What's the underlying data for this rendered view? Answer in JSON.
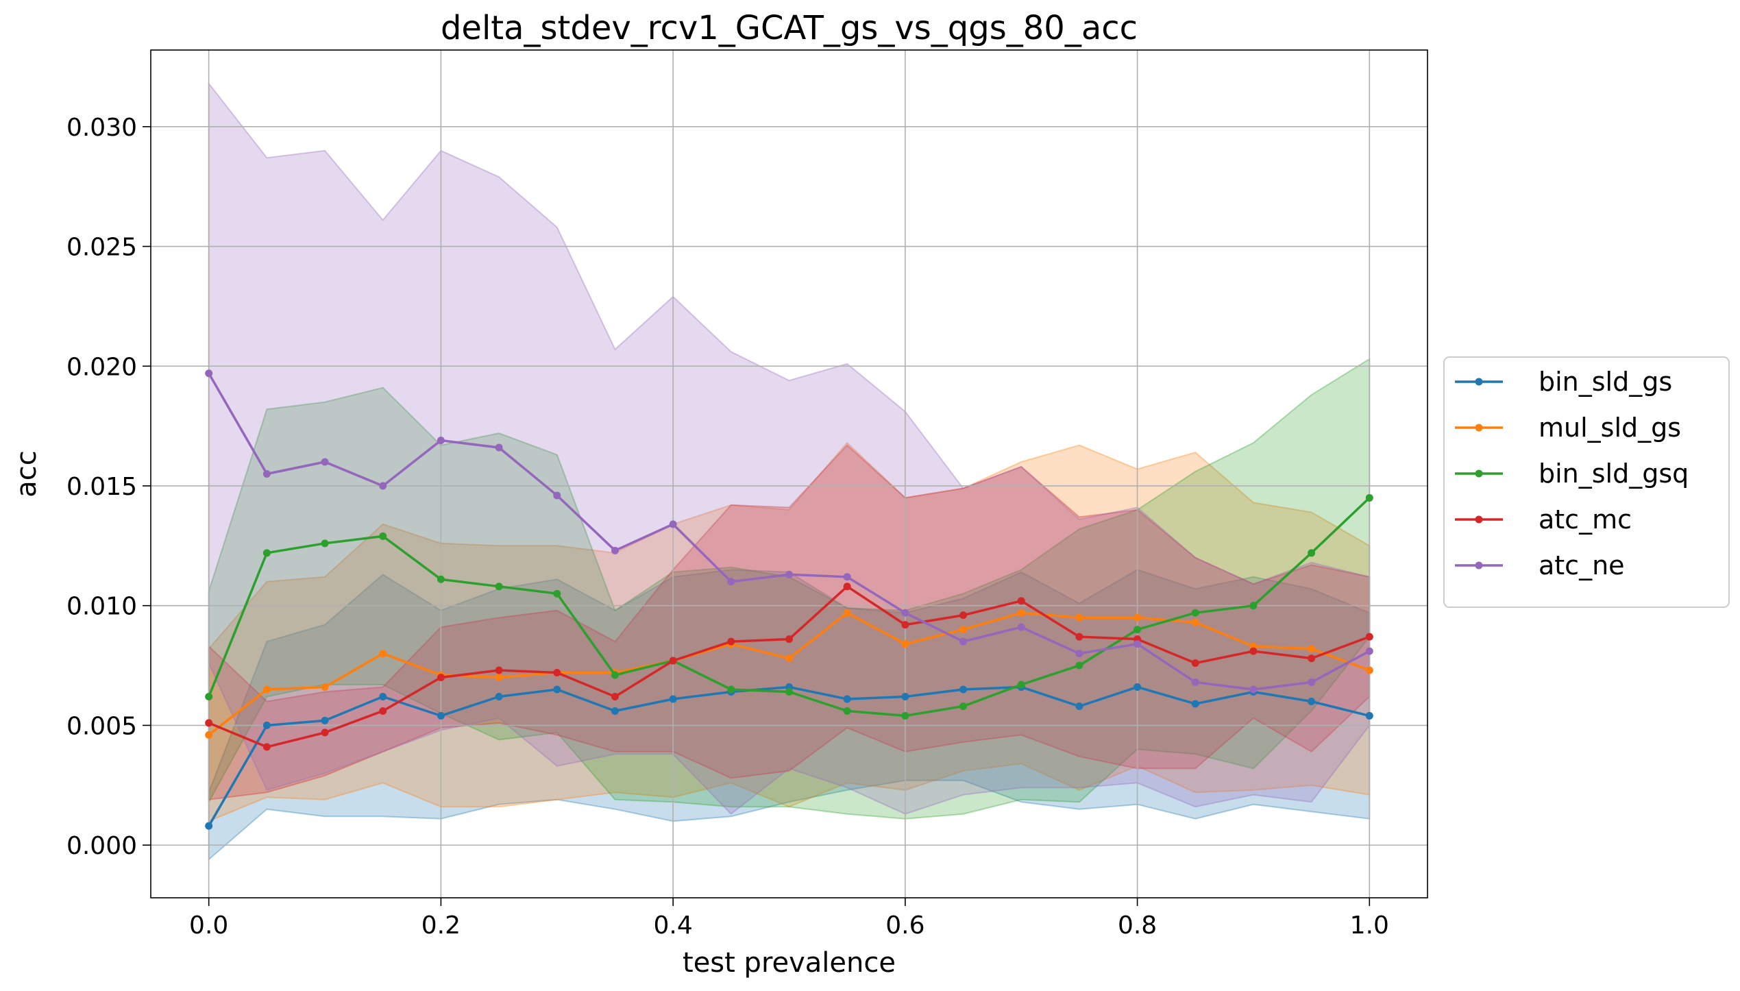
{
  "chart_data": {
    "type": "line",
    "title": "delta_stdev_rcv1_GCAT_gs_vs_qgs_80_acc",
    "xlabel": "test prevalence",
    "ylabel": "acc",
    "xlim": [
      -0.05,
      1.05
    ],
    "ylim": [
      -0.0022,
      0.0332
    ],
    "xticks": [
      0.0,
      0.2,
      0.4,
      0.6,
      0.8,
      1.0
    ],
    "xtick_labels": [
      "0.0",
      "0.2",
      "0.4",
      "0.6",
      "0.8",
      "1.0"
    ],
    "yticks": [
      0.0,
      0.005,
      0.01,
      0.015,
      0.02,
      0.025,
      0.03
    ],
    "ytick_labels": [
      "0.000",
      "0.005",
      "0.010",
      "0.015",
      "0.020",
      "0.025",
      "0.030"
    ],
    "grid": true,
    "legend_position": "center-right-outside",
    "x": [
      0.0,
      0.05,
      0.1,
      0.15,
      0.2,
      0.25,
      0.3,
      0.35,
      0.4,
      0.45,
      0.5,
      0.55,
      0.6,
      0.65,
      0.7,
      0.75,
      0.8,
      0.85,
      0.9,
      0.95,
      1.0
    ],
    "series": [
      {
        "name": "bin_sld_gs",
        "color": "#1f77b4",
        "values": [
          0.0008,
          0.005,
          0.0052,
          0.0062,
          0.0054,
          0.0062,
          0.0065,
          0.0056,
          0.0061,
          0.0064,
          0.0066,
          0.0061,
          0.0062,
          0.0065,
          0.0066,
          0.0058,
          0.0066,
          0.0059,
          0.0064,
          0.006,
          0.0054
        ],
        "band_upper": [
          0.0022,
          0.0085,
          0.0092,
          0.0113,
          0.0098,
          0.0107,
          0.0111,
          0.0098,
          0.0112,
          0.0115,
          0.0114,
          0.0099,
          0.0097,
          0.0103,
          0.0114,
          0.0101,
          0.0115,
          0.0107,
          0.0112,
          0.0107,
          0.0097
        ],
        "band_lower": [
          -0.0006,
          0.0015,
          0.0012,
          0.0012,
          0.0011,
          0.0017,
          0.0019,
          0.0015,
          0.001,
          0.0012,
          0.0018,
          0.0023,
          0.0027,
          0.0027,
          0.0018,
          0.0015,
          0.0017,
          0.0011,
          0.0017,
          0.0014,
          0.0011
        ]
      },
      {
        "name": "mul_sld_gs",
        "color": "#ff7f0e",
        "values": [
          0.0046,
          0.0065,
          0.0066,
          0.008,
          0.0071,
          0.007,
          0.0072,
          0.0072,
          0.0077,
          0.0084,
          0.0078,
          0.0097,
          0.0084,
          0.009,
          0.0097,
          0.0095,
          0.0095,
          0.0093,
          0.0083,
          0.0082,
          0.0073
        ],
        "band_upper": [
          0.0082,
          0.011,
          0.0112,
          0.0134,
          0.0126,
          0.0125,
          0.0125,
          0.0122,
          0.0134,
          0.0142,
          0.014,
          0.0168,
          0.0145,
          0.0149,
          0.016,
          0.0167,
          0.0157,
          0.0164,
          0.0143,
          0.0139,
          0.0125
        ],
        "band_lower": [
          0.001,
          0.002,
          0.0019,
          0.0026,
          0.0016,
          0.0016,
          0.0019,
          0.0022,
          0.002,
          0.0026,
          0.0016,
          0.0026,
          0.0023,
          0.0031,
          0.0034,
          0.0023,
          0.0033,
          0.0022,
          0.0023,
          0.0025,
          0.0021
        ]
      },
      {
        "name": "bin_sld_gsq",
        "color": "#2ca02c",
        "values": [
          0.0062,
          0.0122,
          0.0126,
          0.0129,
          0.0111,
          0.0108,
          0.0105,
          0.0071,
          0.0077,
          0.0065,
          0.0064,
          0.0056,
          0.0054,
          0.0058,
          0.0067,
          0.0075,
          0.009,
          0.0097,
          0.01,
          0.0122,
          0.0145
        ],
        "band_upper": [
          0.0106,
          0.0182,
          0.0185,
          0.0191,
          0.0167,
          0.0172,
          0.0163,
          0.0098,
          0.0114,
          0.0116,
          0.0112,
          0.0099,
          0.0098,
          0.0105,
          0.0115,
          0.0132,
          0.014,
          0.0156,
          0.0168,
          0.0188,
          0.0203
        ],
        "band_lower": [
          0.0018,
          0.0062,
          0.0067,
          0.0067,
          0.0055,
          0.0044,
          0.0047,
          0.0019,
          0.0018,
          0.0016,
          0.0016,
          0.0013,
          0.0011,
          0.0013,
          0.0019,
          0.0018,
          0.004,
          0.0038,
          0.0032,
          0.0056,
          0.0087
        ]
      },
      {
        "name": "atc_mc",
        "color": "#d62728",
        "values": [
          0.0051,
          0.0041,
          0.0047,
          0.0056,
          0.007,
          0.0073,
          0.0072,
          0.0062,
          0.0077,
          0.0085,
          0.0086,
          0.0108,
          0.0092,
          0.0096,
          0.0102,
          0.0087,
          0.0086,
          0.0076,
          0.0081,
          0.0078,
          0.0087
        ],
        "band_upper": [
          0.0083,
          0.006,
          0.0064,
          0.0066,
          0.0091,
          0.0095,
          0.0098,
          0.0085,
          0.0115,
          0.0142,
          0.0141,
          0.0167,
          0.0145,
          0.0149,
          0.0158,
          0.0137,
          0.014,
          0.012,
          0.0109,
          0.0117,
          0.0112
        ],
        "band_lower": [
          0.0019,
          0.0022,
          0.0029,
          0.0039,
          0.0049,
          0.0051,
          0.0046,
          0.0039,
          0.0039,
          0.0028,
          0.0031,
          0.0049,
          0.0039,
          0.0043,
          0.0046,
          0.0037,
          0.0032,
          0.0032,
          0.0053,
          0.0039,
          0.0062
        ]
      },
      {
        "name": "atc_ne",
        "color": "#9467bd",
        "values": [
          0.0197,
          0.0155,
          0.016,
          0.015,
          0.0169,
          0.0166,
          0.0146,
          0.0123,
          0.0134,
          0.011,
          0.0113,
          0.0112,
          0.0097,
          0.0085,
          0.0091,
          0.008,
          0.0084,
          0.0068,
          0.0065,
          0.0068,
          0.0081
        ],
        "band_upper": [
          0.0318,
          0.0287,
          0.029,
          0.0261,
          0.029,
          0.0279,
          0.0258,
          0.0207,
          0.0229,
          0.0206,
          0.0194,
          0.0201,
          0.0181,
          0.0149,
          0.0158,
          0.0136,
          0.0141,
          0.012,
          0.0109,
          0.0118,
          0.0112
        ],
        "band_lower": [
          0.0076,
          0.0023,
          0.003,
          0.0039,
          0.0048,
          0.0053,
          0.0033,
          0.0038,
          0.0038,
          0.0013,
          0.0032,
          0.0024,
          0.0013,
          0.0021,
          0.0024,
          0.0024,
          0.0026,
          0.0016,
          0.0021,
          0.0018,
          0.005
        ]
      }
    ]
  }
}
